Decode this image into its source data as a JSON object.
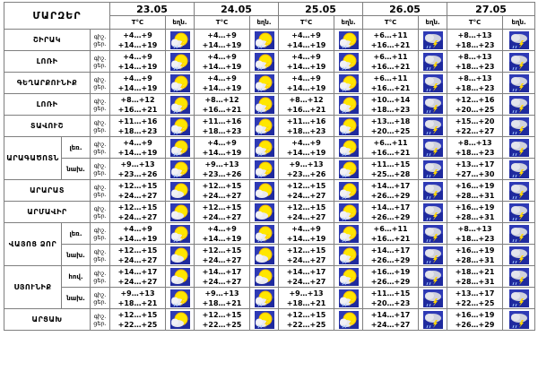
{
  "header": {
    "region_label": "ՄԱՐԶԵՐ",
    "dates": [
      "23.05",
      "24.05",
      "25.05",
      "26.05",
      "27.05"
    ],
    "temp_label": "T°C",
    "weather_label": "եղն."
  },
  "row_labels": {
    "night": "գիշ.",
    "day": "ցեր."
  },
  "regions": [
    {
      "name": "ՇԻՐԱԿ",
      "sub": "",
      "temps": [
        [
          "+4…+9",
          "+14…+19"
        ],
        [
          "+4…+9",
          "+14…+19"
        ],
        [
          "+4…+9",
          "+14…+19"
        ],
        [
          "+6…+11",
          "+16…+21"
        ],
        [
          "+8…+13",
          "+18…+23"
        ]
      ],
      "icons": [
        "sun-cloud-rain-thunder",
        "sun-cloud-rain-thunder",
        "sun-cloud-rain-thunder",
        "cloud-rain-thunder",
        "cloud-rain-thunder"
      ]
    },
    {
      "name": "ԼՈՌԻ",
      "sub": "",
      "temps": [
        [
          "+4…+9",
          "+14…+19"
        ],
        [
          "+4…+9",
          "+14…+19"
        ],
        [
          "+4…+9",
          "+14…+19"
        ],
        [
          "+6…+11",
          "+16…+21"
        ],
        [
          "+8…+13",
          "+18…+23"
        ]
      ],
      "icons": [
        "sun-cloud-rain-thunder",
        "sun-cloud-rain-thunder",
        "sun-cloud-rain-thunder",
        "cloud-rain-thunder",
        "cloud-rain-thunder"
      ]
    },
    {
      "name": "ԳԵՂԱՐՔՈՒՆԻՔ",
      "sub": "",
      "temps": [
        [
          "+4…+9",
          "+14…+19"
        ],
        [
          "+4…+9",
          "+14…+19"
        ],
        [
          "+4…+9",
          "+14…+19"
        ],
        [
          "+6…+11",
          "+16…+21"
        ],
        [
          "+8…+13",
          "+18…+23"
        ]
      ],
      "icons": [
        "sun-cloud-rain-thunder",
        "sun-cloud-rain-thunder",
        "sun-cloud-rain-thunder",
        "cloud-rain-thunder",
        "cloud-rain-thunder"
      ]
    },
    {
      "name": "ԼՈՌԻ",
      "sub": "",
      "temps": [
        [
          "+8…+12",
          "+16…+21"
        ],
        [
          "+8…+12",
          "+16…+21"
        ],
        [
          "+8…+12",
          "+16…+21"
        ],
        [
          "+10…+14",
          "+18…+23"
        ],
        [
          "+12…+16",
          "+20…+25"
        ]
      ],
      "icons": [
        "sun-cloud-rain-thunder",
        "sun-cloud-rain-thunder",
        "sun-cloud-rain-thunder",
        "cloud-rain-thunder",
        "cloud-rain-thunder"
      ]
    },
    {
      "name": "ՏԱՎՈՒՇ",
      "sub": "",
      "temps": [
        [
          "+11…+16",
          "+18…+23"
        ],
        [
          "+11…+16",
          "+18…+23"
        ],
        [
          "+11…+16",
          "+18…+23"
        ],
        [
          "+13…+18",
          "+20…+25"
        ],
        [
          "+15…+20",
          "+22…+27"
        ]
      ],
      "icons": [
        "sun-cloud-rain-thunder",
        "sun-cloud-rain-thunder",
        "sun-cloud-rain-thunder",
        "cloud-rain-thunder",
        "cloud-rain-thunder"
      ]
    },
    {
      "name": "ԱՐԱԳԱԾՈՏՆ",
      "sub": "լեռ.",
      "temps": [
        [
          "+4…+9",
          "+14…+19"
        ],
        [
          "+4…+9",
          "+14…+19"
        ],
        [
          "+4…+9",
          "+14…+19"
        ],
        [
          "+6…+11",
          "+16…+21"
        ],
        [
          "+8…+13",
          "+18…+23"
        ]
      ],
      "icons": [
        "sun-cloud-rain-thunder",
        "sun-cloud-rain-thunder",
        "sun-cloud-rain-thunder",
        "cloud-rain-thunder",
        "cloud-rain-thunder"
      ]
    },
    {
      "name": "",
      "sub": "նախ.",
      "temps": [
        [
          "+9…+13",
          "+23…+26"
        ],
        [
          "+9…+13",
          "+23…+26"
        ],
        [
          "+9…+13",
          "+23…+26"
        ],
        [
          "+11…+15",
          "+25…+28"
        ],
        [
          "+13…+17",
          "+27…+30"
        ]
      ],
      "icons": [
        "sun-cloud-rain-thunder",
        "sun-cloud-rain-thunder",
        "sun-cloud-rain-thunder",
        "cloud-rain-thunder",
        "cloud-rain-thunder"
      ]
    },
    {
      "name": "ԱՐԱՐԱՏ",
      "sub": "",
      "temps": [
        [
          "+12…+15",
          "+24…+27"
        ],
        [
          "+12…+15",
          "+24…+27"
        ],
        [
          "+12…+15",
          "+24…+27"
        ],
        [
          "+14…+17",
          "+26…+29"
        ],
        [
          "+16…+19",
          "+28…+31"
        ]
      ],
      "icons": [
        "sun-cloud",
        "sun-cloud",
        "sun-cloud-rain-thunder",
        "cloud-rain-thunder",
        "cloud-rain-thunder"
      ]
    },
    {
      "name": "ԱՐՄԱՎԻՐ",
      "sub": "",
      "temps": [
        [
          "+12…+15",
          "+24…+27"
        ],
        [
          "+12…+15",
          "+24…+27"
        ],
        [
          "+12…+15",
          "+24…+27"
        ],
        [
          "+14…+17",
          "+26…+29"
        ],
        [
          "+16…+19",
          "+28…+31"
        ]
      ],
      "icons": [
        "sun-cloud",
        "sun-cloud",
        "sun-cloud-rain-thunder",
        "cloud-rain-thunder",
        "cloud-rain-thunder"
      ]
    },
    {
      "name": "ՎԱՅՈՑ ՁՈՐ",
      "sub": "լեռ.",
      "temps": [
        [
          "+4…+9",
          "+14…+19"
        ],
        [
          "+4…+9",
          "+14…+19"
        ],
        [
          "+4…+9",
          "+14…+19"
        ],
        [
          "+6…+11",
          "+16…+21"
        ],
        [
          "+8…+13",
          "+18…+23"
        ]
      ],
      "icons": [
        "sun-cloud-rain-thunder",
        "sun-cloud-rain-thunder",
        "sun-cloud-rain-thunder",
        "cloud-rain-thunder",
        "cloud-rain-thunder"
      ]
    },
    {
      "name": "",
      "sub": "նախ.",
      "temps": [
        [
          "+12…+15",
          "+24…+27"
        ],
        [
          "+12…+15",
          "+24…+27"
        ],
        [
          "+12…+15",
          "+24…+27"
        ],
        [
          "+14…+17",
          "+26…+29"
        ],
        [
          "+16…+19",
          "+28…+31"
        ]
      ],
      "icons": [
        "sun-cloud",
        "sun-cloud",
        "sun-cloud-rain-thunder",
        "cloud-rain-thunder",
        "cloud-rain-thunder"
      ]
    },
    {
      "name": "ՍՅՈՒՆԻՔ",
      "sub": "հով.",
      "temps": [
        [
          "+14…+17",
          "+24…+27"
        ],
        [
          "+14…+17",
          "+24…+27"
        ],
        [
          "+14…+17",
          "+24…+27"
        ],
        [
          "+16…+19",
          "+26…+29"
        ],
        [
          "+18…+21",
          "+28…+31"
        ]
      ],
      "icons": [
        "sun-cloud",
        "sun-cloud",
        "sun-cloud-rain-thunder",
        "cloud-rain-thunder",
        "cloud-rain-thunder"
      ]
    },
    {
      "name": "",
      "sub": "նախ.",
      "temps": [
        [
          "+9…+13",
          "+18…+21"
        ],
        [
          "+9…+13",
          "+18…+21"
        ],
        [
          "+9…+13",
          "+18…+21"
        ],
        [
          "+11…+15",
          "+20…+23"
        ],
        [
          "+13…+17",
          "+22…+25"
        ]
      ],
      "icons": [
        "sun-cloud-rain-thunder",
        "sun-cloud-rain-thunder",
        "sun-cloud-rain-thunder",
        "cloud-rain-thunder",
        "cloud-rain-thunder"
      ]
    },
    {
      "name": "ԱՐՑԱԽ",
      "sub": "",
      "temps": [
        [
          "+12…+15",
          "+22…+25"
        ],
        [
          "+12…+15",
          "+22…+25"
        ],
        [
          "+12…+15",
          "+22…+25"
        ],
        [
          "+14…+17",
          "+24…+27"
        ],
        [
          "+16…+19",
          "+26…+29"
        ]
      ],
      "icons": [
        "sun-cloud",
        "sun-cloud-rain-thunder",
        "sun-cloud-rain-thunder",
        "cloud-rain-thunder",
        "cloud-rain-thunder"
      ]
    }
  ]
}
